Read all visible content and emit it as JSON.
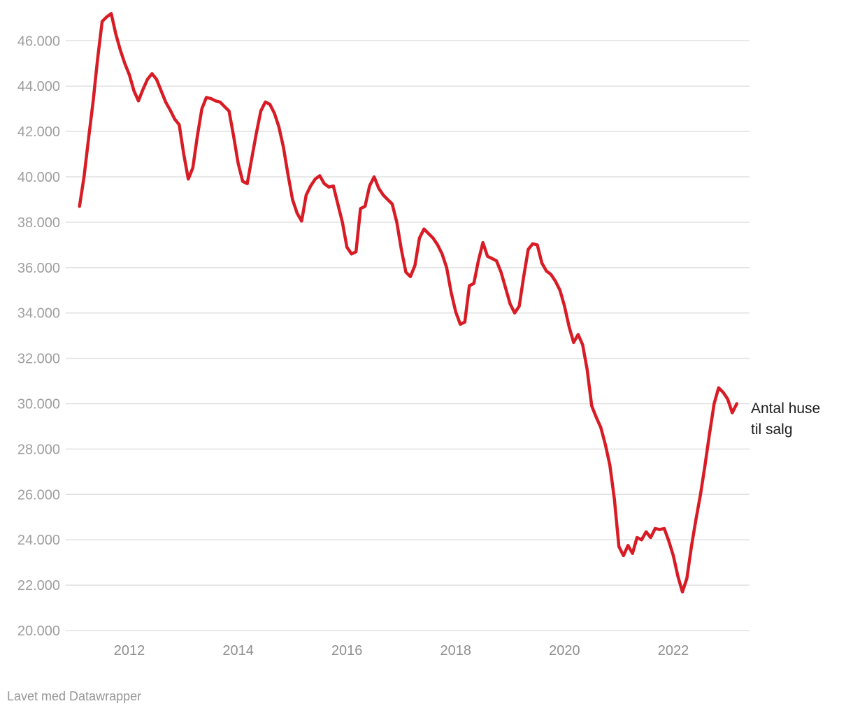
{
  "chart_data": {
    "type": "line",
    "title": "",
    "series_name": "Antal huse til salg",
    "frequency": "monthly",
    "x_start": "2011-02",
    "x_end": "2023-03",
    "values": [
      38700,
      40000,
      41700,
      43300,
      45200,
      46850,
      47050,
      47200,
      46300,
      45600,
      45000,
      44500,
      43800,
      43350,
      43850,
      44300,
      44550,
      44300,
      43800,
      43300,
      42950,
      42550,
      42300,
      41000,
      39900,
      40400,
      41800,
      43000,
      43500,
      43450,
      43350,
      43300,
      43100,
      42900,
      41800,
      40600,
      39800,
      39700,
      40800,
      41900,
      42900,
      43300,
      43200,
      42800,
      42200,
      41300,
      40100,
      39000,
      38400,
      38050,
      39200,
      39600,
      39900,
      40050,
      39700,
      39550,
      39600,
      38800,
      38000,
      36900,
      36600,
      36700,
      38600,
      38700,
      39600,
      40000,
      39500,
      39200,
      39000,
      38800,
      38000,
      36800,
      35800,
      35600,
      36100,
      37300,
      37700,
      37500,
      37300,
      37000,
      36600,
      36000,
      34900,
      34050,
      33500,
      33600,
      35200,
      35300,
      36300,
      37100,
      36500,
      36400,
      36300,
      35800,
      35100,
      34400,
      34000,
      34300,
      35600,
      36800,
      37050,
      37000,
      36200,
      35850,
      35700,
      35400,
      35000,
      34300,
      33400,
      32700,
      33050,
      32600,
      31500,
      29900,
      29400,
      28950,
      28200,
      27300,
      25800,
      23700,
      23300,
      23750,
      23400,
      24100,
      24000,
      24350,
      24100,
      24500,
      24450,
      24500,
      23950,
      23300,
      22400,
      21700,
      22300,
      23700,
      24900,
      26000,
      27300,
      28700,
      30000,
      30700,
      30500,
      30200,
      29600,
      30000
    ],
    "y_axis": {
      "range": [
        20000,
        47400
      ],
      "ticks": [
        20000,
        22000,
        24000,
        26000,
        28000,
        30000,
        32000,
        34000,
        36000,
        38000,
        40000,
        42000,
        44000,
        46000
      ],
      "tick_labels": [
        "20.000",
        "22.000",
        "24.000",
        "26.000",
        "28.000",
        "30.000",
        "32.000",
        "34.000",
        "36.000",
        "38.000",
        "40.000",
        "42.000",
        "44.000",
        "46.000"
      ]
    },
    "x_axis": {
      "tick_years": [
        2012,
        2014,
        2016,
        2018,
        2020,
        2022
      ],
      "tick_labels": [
        "2012",
        "2014",
        "2016",
        "2018",
        "2020",
        "2022"
      ]
    },
    "grid": "horizontal",
    "legend_position": "annotation-right"
  },
  "annotation": {
    "line1": "Antal huse",
    "line2": "til salg"
  },
  "footer": {
    "attribution": "Lavet med Datawrapper"
  },
  "colors": {
    "line": "#d81c25",
    "grid": "#e0e0e0",
    "y_tick_text": "#9e9e9e",
    "x_tick_text": "#8f8f8f",
    "annotation_text": "#1d1d1d",
    "footer_text": "#969696",
    "background": "#ffffff"
  }
}
